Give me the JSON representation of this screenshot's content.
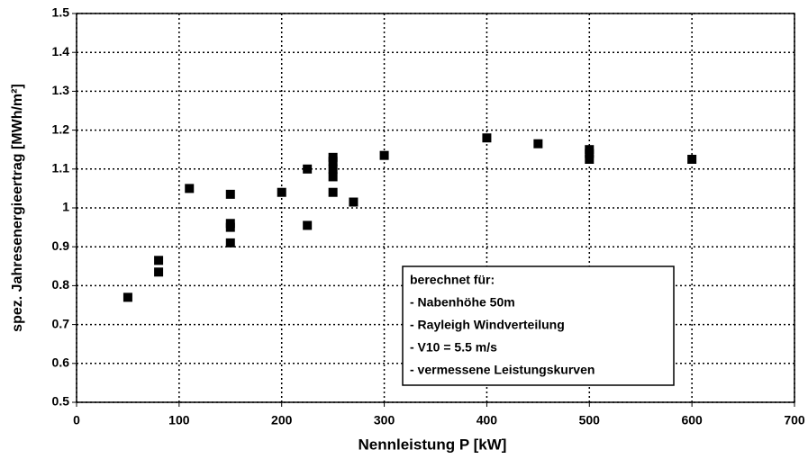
{
  "chart_data": {
    "type": "scatter",
    "xlabel": "Nennleistung P [kW]",
    "ylabel": "spez. Jahresenergieertrag [MWh/m²]",
    "x": [
      50,
      80,
      80,
      110,
      150,
      150,
      150,
      150,
      200,
      225,
      225,
      250,
      250,
      250,
      250,
      250,
      270,
      300,
      400,
      450,
      500,
      500,
      500,
      600
    ],
    "values": [
      0.77,
      0.865,
      0.835,
      1.05,
      1.035,
      0.96,
      0.95,
      0.91,
      1.04,
      1.1,
      0.955,
      1.13,
      1.12,
      1.1,
      1.08,
      1.04,
      1.015,
      1.135,
      1.18,
      1.165,
      1.15,
      1.14,
      1.125,
      1.125
    ],
    "color": "#000000",
    "xlim": [
      0,
      700
    ],
    "xticks": [
      0,
      100,
      200,
      300,
      400,
      500,
      600,
      700
    ],
    "ylim": [
      0.5,
      1.5
    ],
    "yticks": [
      0.5,
      0.6,
      0.7,
      0.8,
      0.9,
      1,
      1.1,
      1.2,
      1.3,
      1.4,
      1.5
    ],
    "grid": true,
    "annotation": [
      "berechnet für:",
      "- Nabenhöhe 50m",
      "- Rayleigh Windverteilung",
      "- V10 = 5.5 m/s",
      "- vermessene Leistungskurven"
    ]
  }
}
